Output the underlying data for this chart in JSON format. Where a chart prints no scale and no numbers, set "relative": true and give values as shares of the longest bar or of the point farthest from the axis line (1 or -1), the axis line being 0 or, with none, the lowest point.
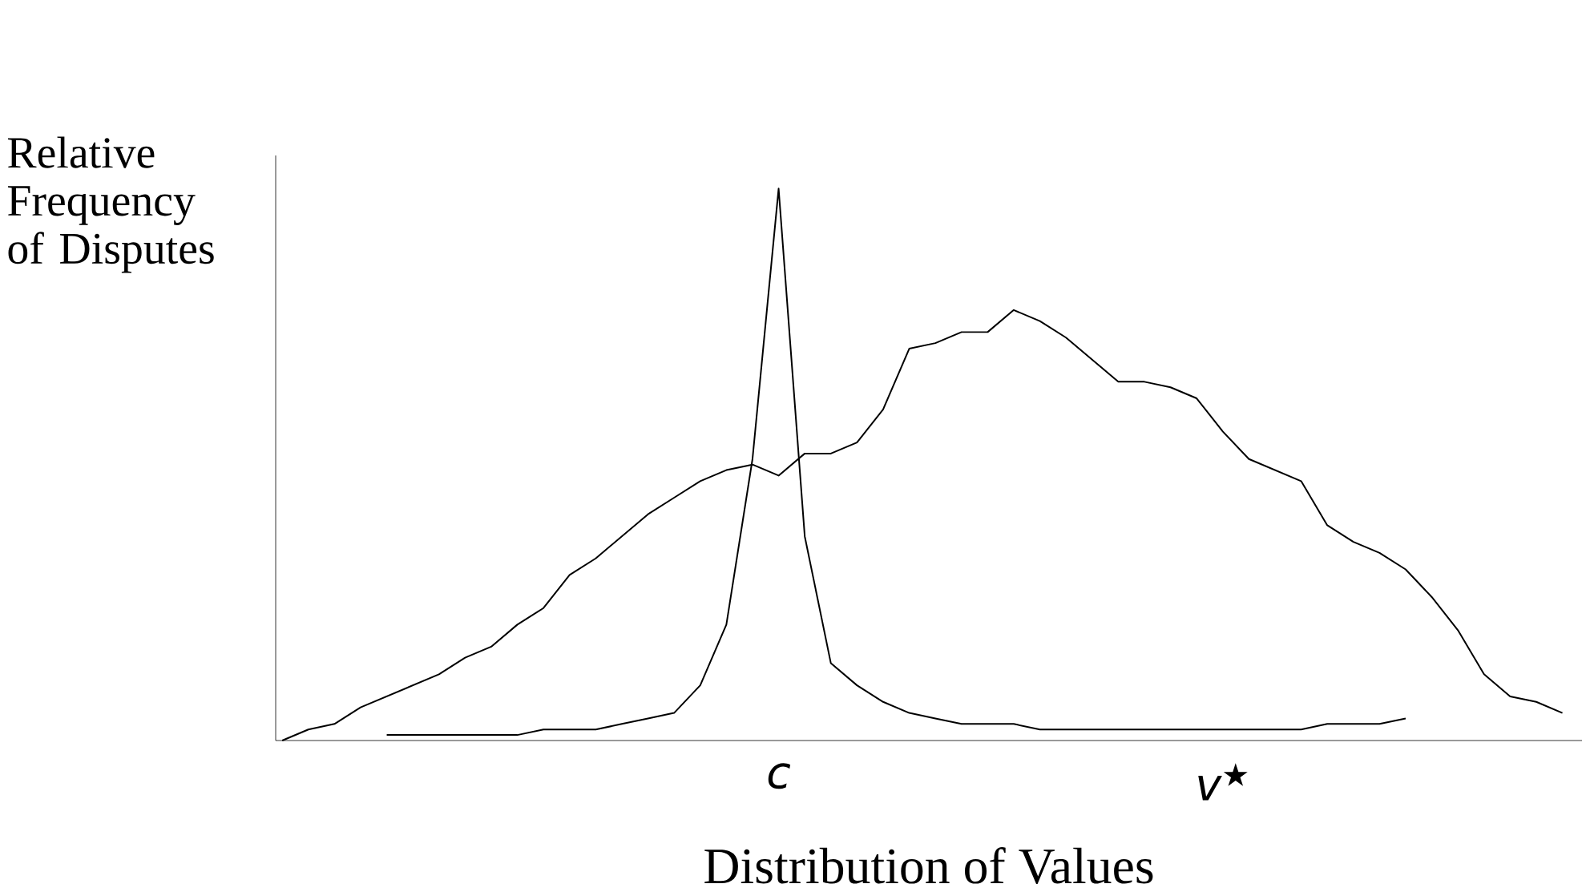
{
  "chart_data": {
    "type": "line",
    "relative": true,
    "xlabel": "Distribution of Values",
    "ylabel": "Relative Frequency of Disputes",
    "categories": [
      null,
      null,
      null,
      null,
      null,
      null,
      null,
      null,
      null,
      null,
      null,
      null,
      null,
      null,
      null,
      null,
      null,
      null,
      null,
      "c",
      null,
      null,
      null,
      null,
      null,
      null,
      null,
      null,
      null,
      null,
      null,
      null,
      null,
      null,
      null,
      null,
      "v$^{★}$",
      null,
      null,
      null,
      null,
      null,
      null,
      null,
      null,
      null,
      null,
      null,
      null,
      null
    ],
    "series": [
      {
        "color": "#000000",
        "values": [
          null,
          null,
          null,
          null,
          0.01,
          0.01,
          0.01,
          0.01,
          0.01,
          0.01,
          0.02,
          0.02,
          0.02,
          0.03,
          0.04,
          0.05,
          0.1,
          0.21,
          0.51,
          1.0,
          0.37,
          0.14,
          0.1,
          0.07,
          0.05,
          0.04,
          0.03,
          0.03,
          0.03,
          0.02,
          0.02,
          0.02,
          0.02,
          0.02,
          0.02,
          0.02,
          0.02,
          0.02,
          0.02,
          0.02,
          0.03,
          0.03,
          0.03,
          0.04,
          null,
          null,
          null,
          null,
          null,
          null
        ]
      },
      {
        "color": "#000000",
        "values": [
          0.0,
          0.02,
          0.03,
          0.06,
          0.08,
          0.1,
          0.12,
          0.15,
          0.17,
          0.21,
          0.24,
          0.3,
          0.33,
          0.37,
          0.41,
          0.44,
          0.47,
          0.49,
          0.5,
          0.48,
          0.52,
          0.52,
          0.54,
          0.6,
          0.71,
          0.72,
          0.74,
          0.74,
          0.78,
          0.76,
          0.73,
          0.69,
          0.65,
          0.65,
          0.64,
          0.62,
          0.56,
          0.51,
          0.49,
          0.47,
          0.39,
          0.36,
          0.34,
          0.31,
          0.26,
          0.2,
          0.12,
          0.08,
          0.07,
          0.05
        ]
      }
    ]
  }
}
